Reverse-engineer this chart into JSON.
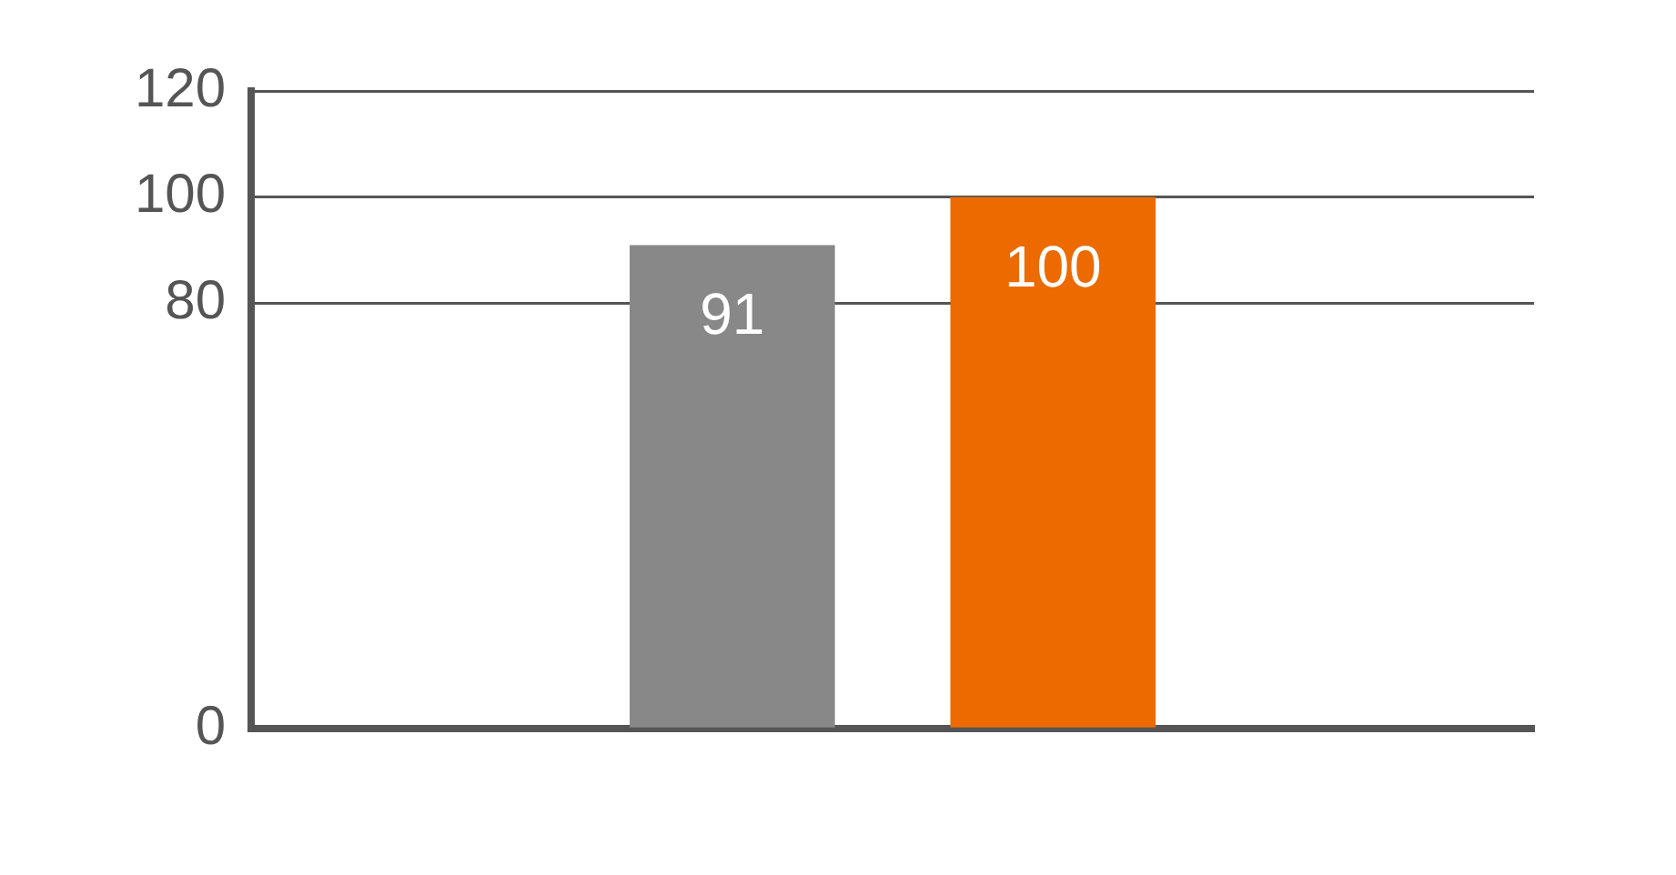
{
  "chart_data": {
    "type": "bar",
    "categories": [
      null,
      null,
      null,
      null
    ],
    "values": [
      null,
      91,
      100,
      null
    ],
    "colors": [
      "#888888",
      "#888888",
      "#ec6a00",
      "#888888"
    ],
    "ylim": [
      0,
      120
    ],
    "yticks": [
      0,
      80,
      100,
      120
    ],
    "grid": "y",
    "data_labels": true
  }
}
